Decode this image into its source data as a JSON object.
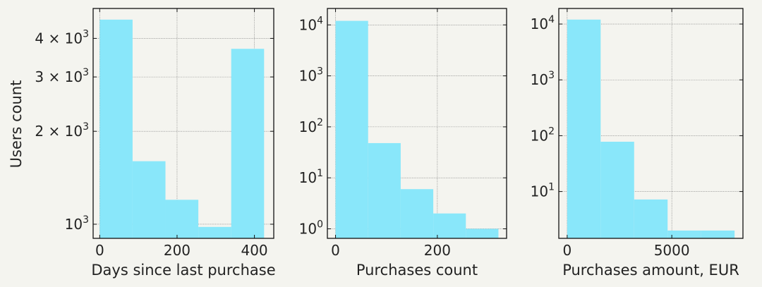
{
  "figure": {
    "ylabel": "Users count"
  },
  "chart_data": [
    {
      "type": "bar",
      "histogram": true,
      "xlabel": "Days since last purchase",
      "ylabel": "Users count",
      "yscale": "log",
      "xlim": [
        -17,
        450
      ],
      "ylim": [
        900,
        5000
      ],
      "bin_edges": [
        0,
        85,
        170,
        255,
        340,
        425
      ],
      "values": [
        4600,
        1600,
        1200,
        980,
        3700
      ],
      "x_ticks": [
        0,
        200,
        400
      ],
      "x_tick_labels": [
        "0",
        "200",
        "400"
      ],
      "y_ticks": [
        1000,
        2000,
        3000,
        4000
      ],
      "y_tick_labels": [
        {
          "base": "10",
          "exp": "3",
          "mult": ""
        },
        {
          "base": "10",
          "exp": "3",
          "mult": "2 × "
        },
        {
          "base": "10",
          "exp": "3",
          "mult": "3 × "
        },
        {
          "base": "10",
          "exp": "3",
          "mult": "4 × "
        }
      ],
      "grid": true
    },
    {
      "type": "bar",
      "histogram": true,
      "xlabel": "Purchases count",
      "yscale": "log",
      "xlim": [
        -16,
        336
      ],
      "ylim": [
        0.65,
        21000
      ],
      "bin_edges": [
        0,
        64,
        128,
        192,
        256,
        320
      ],
      "values": [
        12000,
        48,
        6,
        2,
        1
      ],
      "x_ticks": [
        0,
        200
      ],
      "x_tick_labels": [
        "0",
        "200"
      ],
      "y_ticks": [
        1,
        10,
        100,
        1000,
        10000
      ],
      "y_tick_labels": [
        {
          "base": "10",
          "exp": "0",
          "mult": ""
        },
        {
          "base": "10",
          "exp": "1",
          "mult": ""
        },
        {
          "base": "10",
          "exp": "2",
          "mult": ""
        },
        {
          "base": "10",
          "exp": "3",
          "mult": ""
        },
        {
          "base": "10",
          "exp": "4",
          "mult": ""
        }
      ],
      "grid": true
    },
    {
      "type": "bar",
      "histogram": true,
      "xlabel": "Purchases amount, EUR",
      "yscale": "log",
      "xlim": [
        -400,
        8400
      ],
      "ylim": [
        1.45,
        19000
      ],
      "bin_edges": [
        0,
        1600,
        3200,
        4800,
        6400,
        8000
      ],
      "values": [
        12000,
        78,
        7.2,
        2,
        2
      ],
      "x_ticks": [
        0,
        5000
      ],
      "x_tick_labels": [
        "0",
        "5000"
      ],
      "y_ticks": [
        10,
        100,
        1000,
        10000
      ],
      "y_tick_labels": [
        {
          "base": "10",
          "exp": "1",
          "mult": ""
        },
        {
          "base": "10",
          "exp": "2",
          "mult": ""
        },
        {
          "base": "10",
          "exp": "3",
          "mult": ""
        },
        {
          "base": "10",
          "exp": "4",
          "mult": ""
        }
      ],
      "grid": true
    }
  ]
}
